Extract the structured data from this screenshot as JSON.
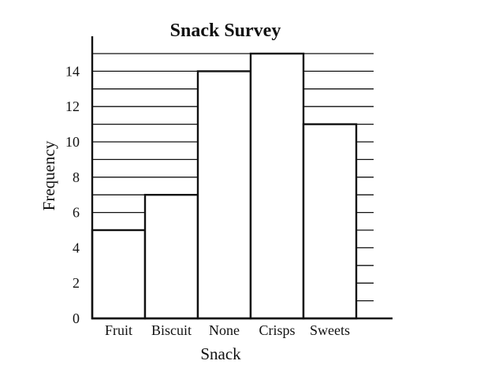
{
  "chart_data": {
    "type": "bar",
    "title": "Snack Survey",
    "xlabel": "Snack",
    "ylabel": "Frequency",
    "categories": [
      "Fruit",
      "Biscuit",
      "None",
      "Crisps",
      "Sweets"
    ],
    "values": [
      5,
      7,
      14,
      15,
      11
    ],
    "ylim": [
      0,
      15
    ],
    "y_tick_labels": [
      "0",
      "2",
      "4",
      "6",
      "8",
      "10",
      "12",
      "14"
    ],
    "grid": true,
    "legend": "none",
    "colors": {
      "bar_fill": "#ffffff",
      "line": "#111111"
    }
  }
}
